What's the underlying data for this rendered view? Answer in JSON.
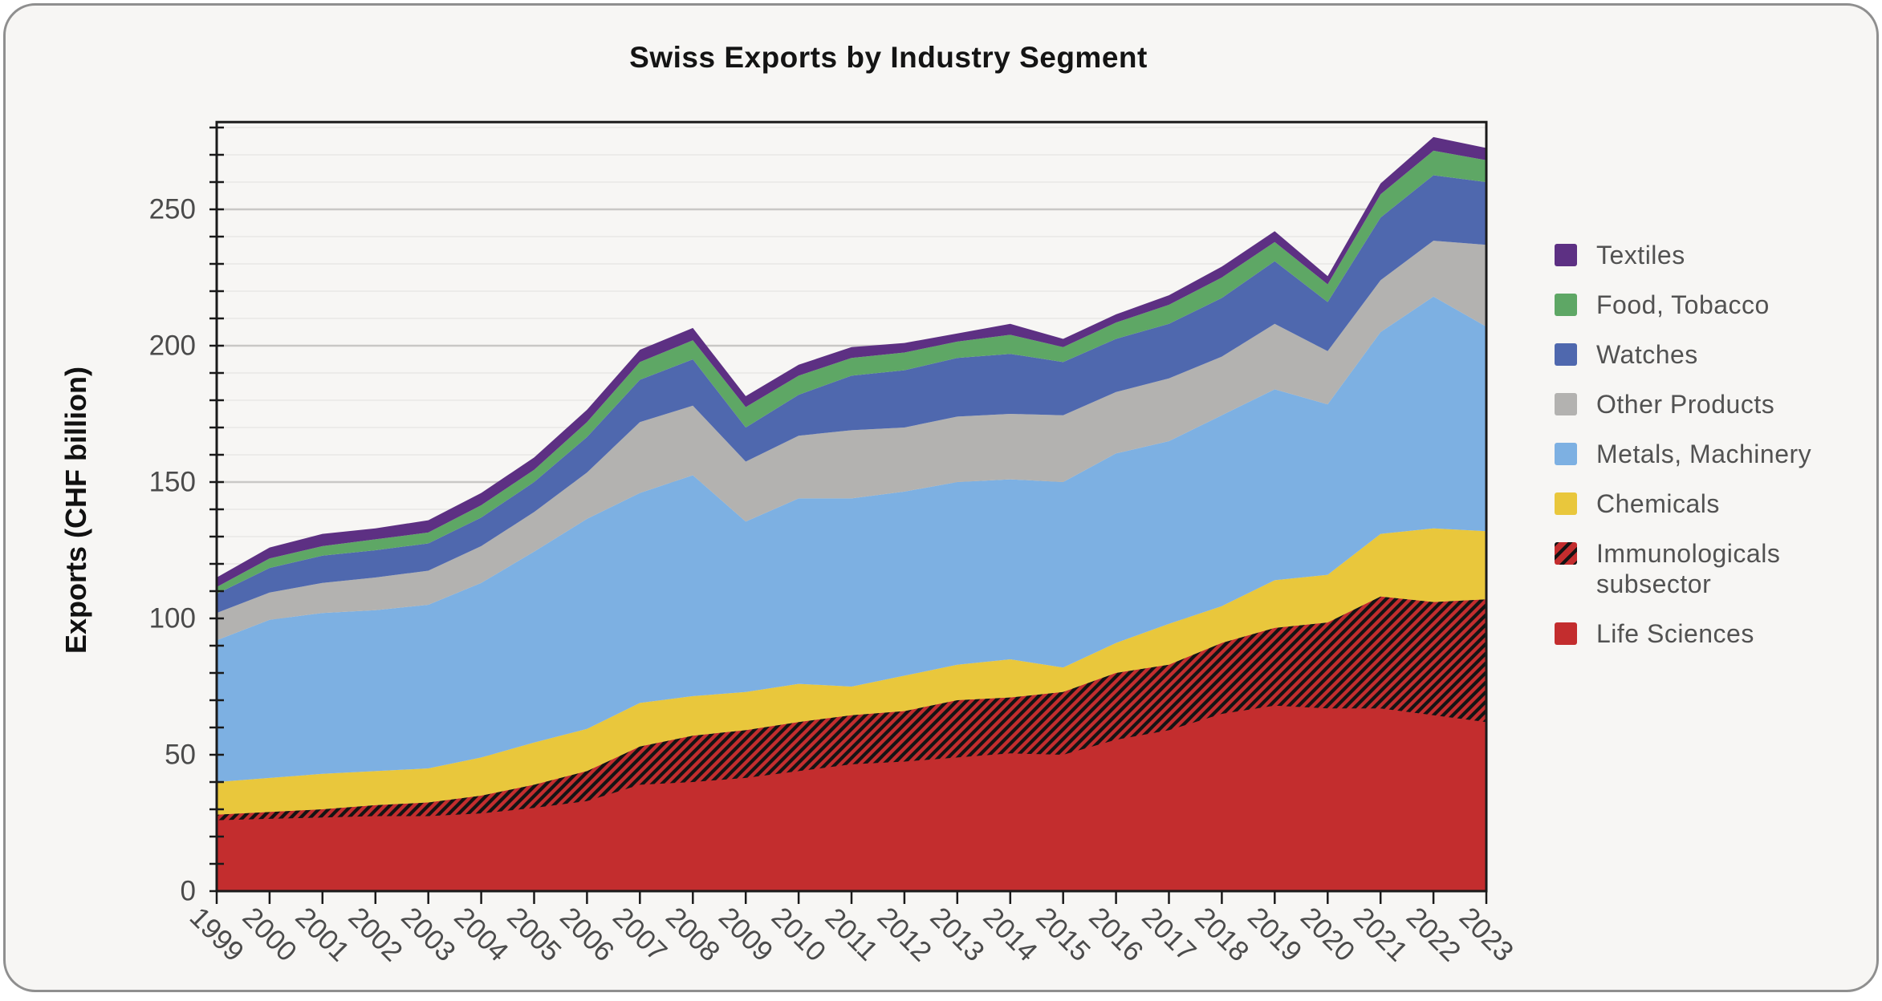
{
  "title": "Swiss Exports by Industry Segment",
  "y_axis": {
    "label": "Exports (CHF billion)",
    "tick_labels": [
      "0",
      "50",
      "100",
      "150",
      "200",
      "250"
    ]
  },
  "x_axis": {
    "tick_labels": [
      "1999",
      "2000",
      "2001",
      "2002",
      "2003",
      "2004",
      "2005",
      "2006",
      "2007",
      "2008",
      "2009",
      "2010",
      "2011",
      "2012",
      "2013",
      "2014",
      "2015",
      "2016",
      "2017",
      "2018",
      "2019",
      "2020",
      "2021",
      "2022",
      "2023"
    ]
  },
  "legend": {
    "items": [
      {
        "label": "Textiles",
        "color": "#5d3083",
        "hatched": false
      },
      {
        "label": "Food, Tobacco",
        "color": "#5ea765",
        "hatched": false
      },
      {
        "label": "Watches",
        "color": "#4f68ae",
        "hatched": false
      },
      {
        "label": "Other Products",
        "color": "#b3b2b0",
        "hatched": false
      },
      {
        "label": "Metals, Machinery",
        "color": "#7db0e2",
        "hatched": false
      },
      {
        "label": "Chemicals",
        "color": "#e9c73c",
        "hatched": false
      },
      {
        "label": "Immunologicals\nsubsector",
        "color": "#c32d2e",
        "stripe": "#141414",
        "hatched": true
      },
      {
        "label": "Life Sciences",
        "color": "#c32d2e",
        "hatched": false
      }
    ]
  },
  "colors": {
    "card_background": "#f7f6f4",
    "card_border": "#8f8f8f",
    "major_grid": "#c9c8c6",
    "minor_grid": "#e8e7e5",
    "axis": "#1a1a1a",
    "tick_text": "#4b4b4b",
    "legend_text": "#525252"
  },
  "chart_data": {
    "type": "area",
    "stacked": true,
    "title": "Swiss Exports by Industry Segment",
    "y_label": "Exports (CHF billion)",
    "x_label": "",
    "y_ticks": [
      0,
      50,
      100,
      150,
      200,
      250
    ],
    "y_minor_step": 10,
    "y_max": 282,
    "grid": true,
    "legend_position": "right",
    "x": [
      1999,
      2000,
      2001,
      2002,
      2003,
      2004,
      2005,
      2006,
      2007,
      2008,
      2009,
      2010,
      2011,
      2012,
      2013,
      2014,
      2015,
      2016,
      2017,
      2018,
      2019,
      2020,
      2021,
      2022,
      2023
    ],
    "series": [
      {
        "name": "Life Sciences",
        "color": "#c32d2e",
        "values": [
          28,
          29,
          30,
          31.5,
          32.5,
          35,
          39,
          44,
          53,
          57,
          59,
          62,
          64.5,
          66,
          70,
          71,
          73,
          80,
          83,
          91,
          96.5,
          98.5,
          108,
          106,
          107
        ]
      },
      {
        "name": "Chemicals",
        "color": "#e9c73c",
        "values": [
          12,
          12.5,
          13,
          12.5,
          12.5,
          14,
          15.5,
          15.5,
          16,
          14.5,
          14,
          14,
          10.5,
          13,
          13,
          14,
          9,
          11,
          15,
          13.5,
          17.5,
          17.5,
          23,
          27,
          25
        ]
      },
      {
        "name": "Metals, Machinery",
        "color": "#7db0e2",
        "values": [
          52,
          58,
          59,
          59,
          60,
          64,
          70,
          77,
          77,
          81,
          62.5,
          68,
          69,
          67.5,
          67,
          66,
          68,
          69.5,
          67,
          70,
          70,
          62.5,
          74,
          85,
          75
        ]
      },
      {
        "name": "Other Products",
        "color": "#b3b2b0",
        "values": [
          10,
          10,
          11,
          12,
          12.5,
          13.5,
          14.5,
          17,
          26,
          25.5,
          22,
          23,
          25,
          23.5,
          24,
          24,
          24.5,
          22.5,
          23,
          21.5,
          24,
          19.5,
          19,
          20.5,
          30
        ]
      },
      {
        "name": "Watches",
        "color": "#4f68ae",
        "values": [
          7,
          9,
          10,
          10,
          10,
          10.5,
          11,
          13,
          15.5,
          17,
          12.5,
          15,
          20,
          21,
          21.5,
          22,
          19.5,
          19.5,
          20,
          21.5,
          23,
          18,
          23,
          24,
          23
        ]
      },
      {
        "name": "Food, Tobacco",
        "color": "#5ea765",
        "values": [
          2.5,
          3.5,
          3.5,
          4,
          4,
          4.5,
          4.5,
          5.5,
          6.5,
          7,
          7.5,
          7,
          6.5,
          6.5,
          6,
          7,
          5.5,
          6,
          7,
          7.5,
          7,
          6.5,
          8.5,
          9,
          8
        ]
      },
      {
        "name": "Textiles",
        "color": "#5d3083",
        "values": [
          3.5,
          4,
          4.5,
          4,
          4.5,
          4.5,
          4.5,
          4.5,
          4.5,
          4.5,
          4,
          4,
          4,
          3.5,
          3,
          4,
          3,
          3,
          3.5,
          4,
          4,
          3,
          4,
          5,
          4.5
        ]
      }
    ],
    "overlay": {
      "name": "Immunologicals subsector",
      "parent": "Life Sciences",
      "note": "hatched band drawn over the top portion of Life Sciences",
      "pattern": {
        "background": "#c32d2e",
        "stripe": "#141414"
      },
      "values": [
        2,
        2.5,
        3,
        4,
        5,
        6.5,
        8.5,
        11,
        14,
        17,
        17.5,
        18,
        18,
        18.5,
        21,
        20.5,
        23,
        24.5,
        24,
        26,
        28.5,
        31.5,
        41,
        41.5,
        45
      ]
    }
  }
}
